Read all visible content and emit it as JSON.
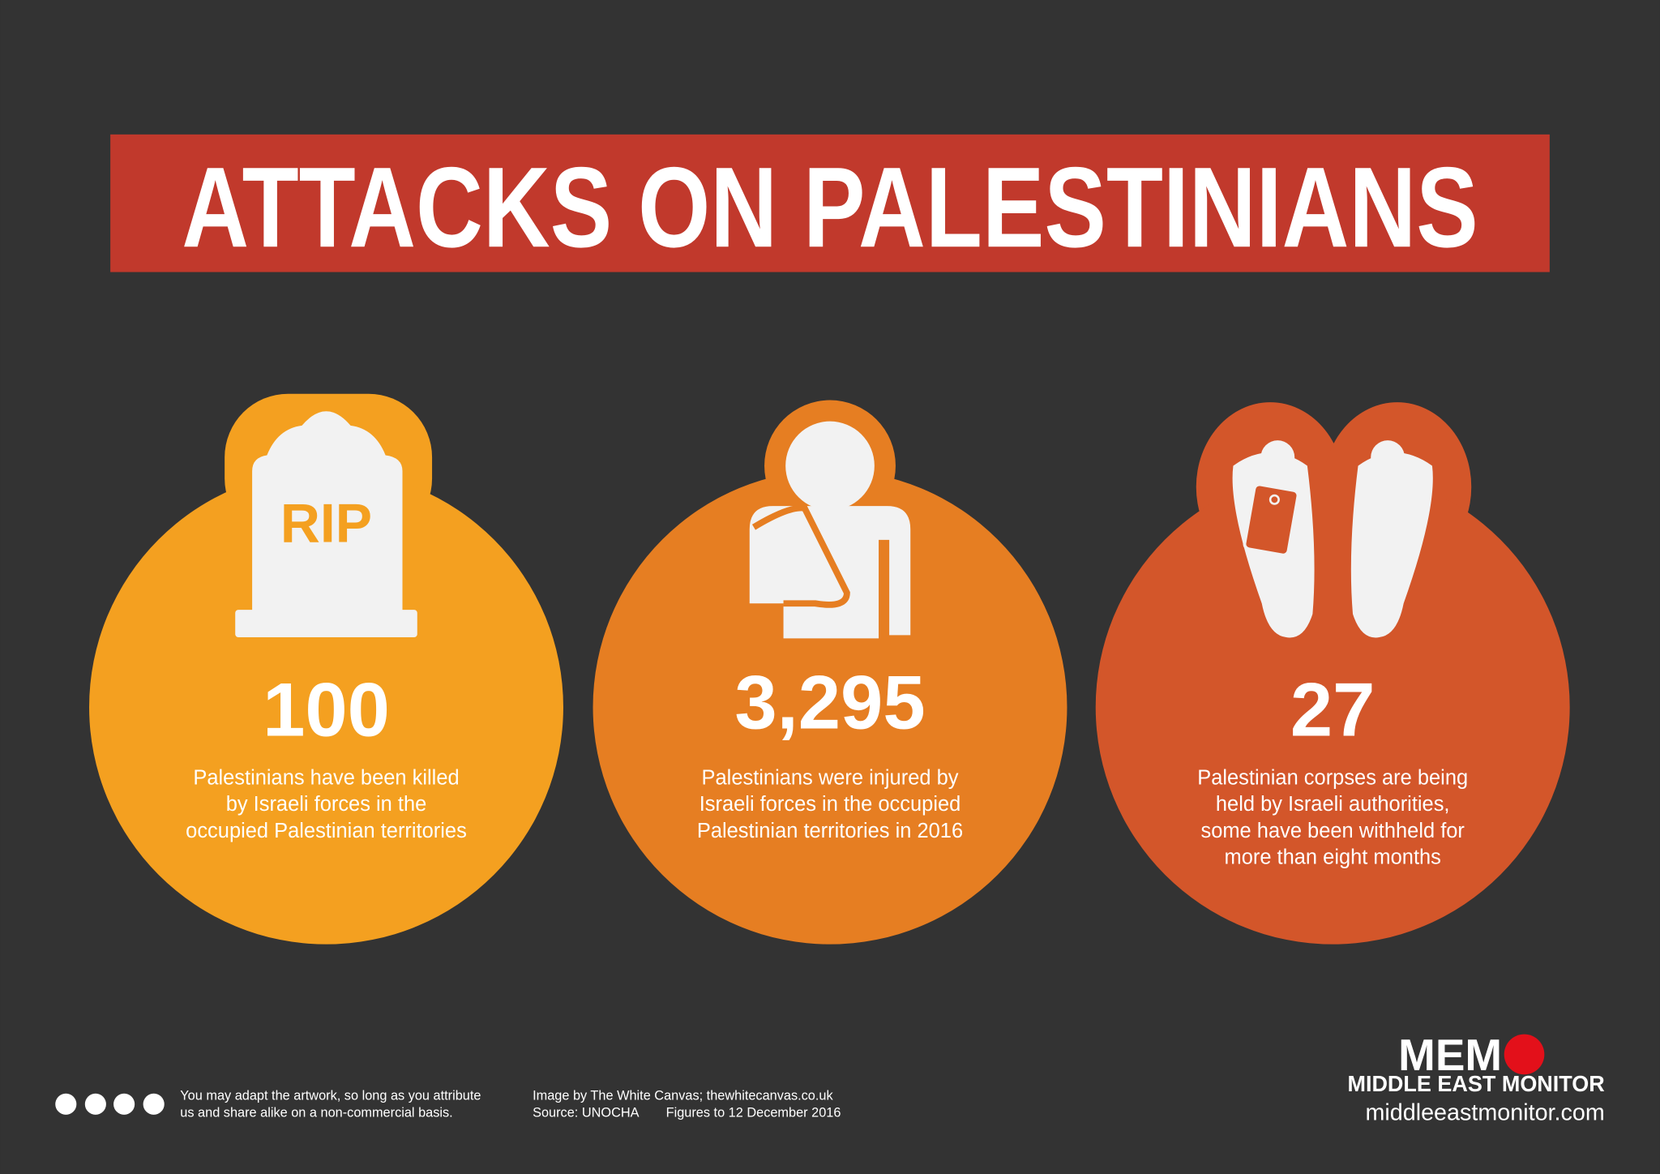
{
  "title": "ATTACKS ON PALESTINIANS",
  "stats": [
    {
      "icon_text": "RIP",
      "figure": "100",
      "description": [
        "Palestinians have been killed",
        "by Israeli forces in the",
        "occupied Palestinian territories"
      ]
    },
    {
      "figure": "3,295",
      "description": [
        "Palestinians were injured by",
        "Israeli forces in the occupied",
        "Palestinian territories in 2016"
      ]
    },
    {
      "figure": "27",
      "description": [
        "Palestinian corpses are being",
        "held by Israeli authorities,",
        "some have been withheld for",
        "more than eight months"
      ]
    }
  ],
  "footer": {
    "license": [
      "You may adapt the artwork, so long as you attribute",
      "us and share alike on a non-commercial basis."
    ],
    "credit": "Image by The White Canvas; thewhitecanvas.co.uk",
    "source": "Source: UNOCHA",
    "figures_date": "Figures to 12 December 2016",
    "logo": {
      "mark": "MEM",
      "name": "MIDDLE EAST MONITOR",
      "url": "middleeastmonitor.com"
    }
  }
}
